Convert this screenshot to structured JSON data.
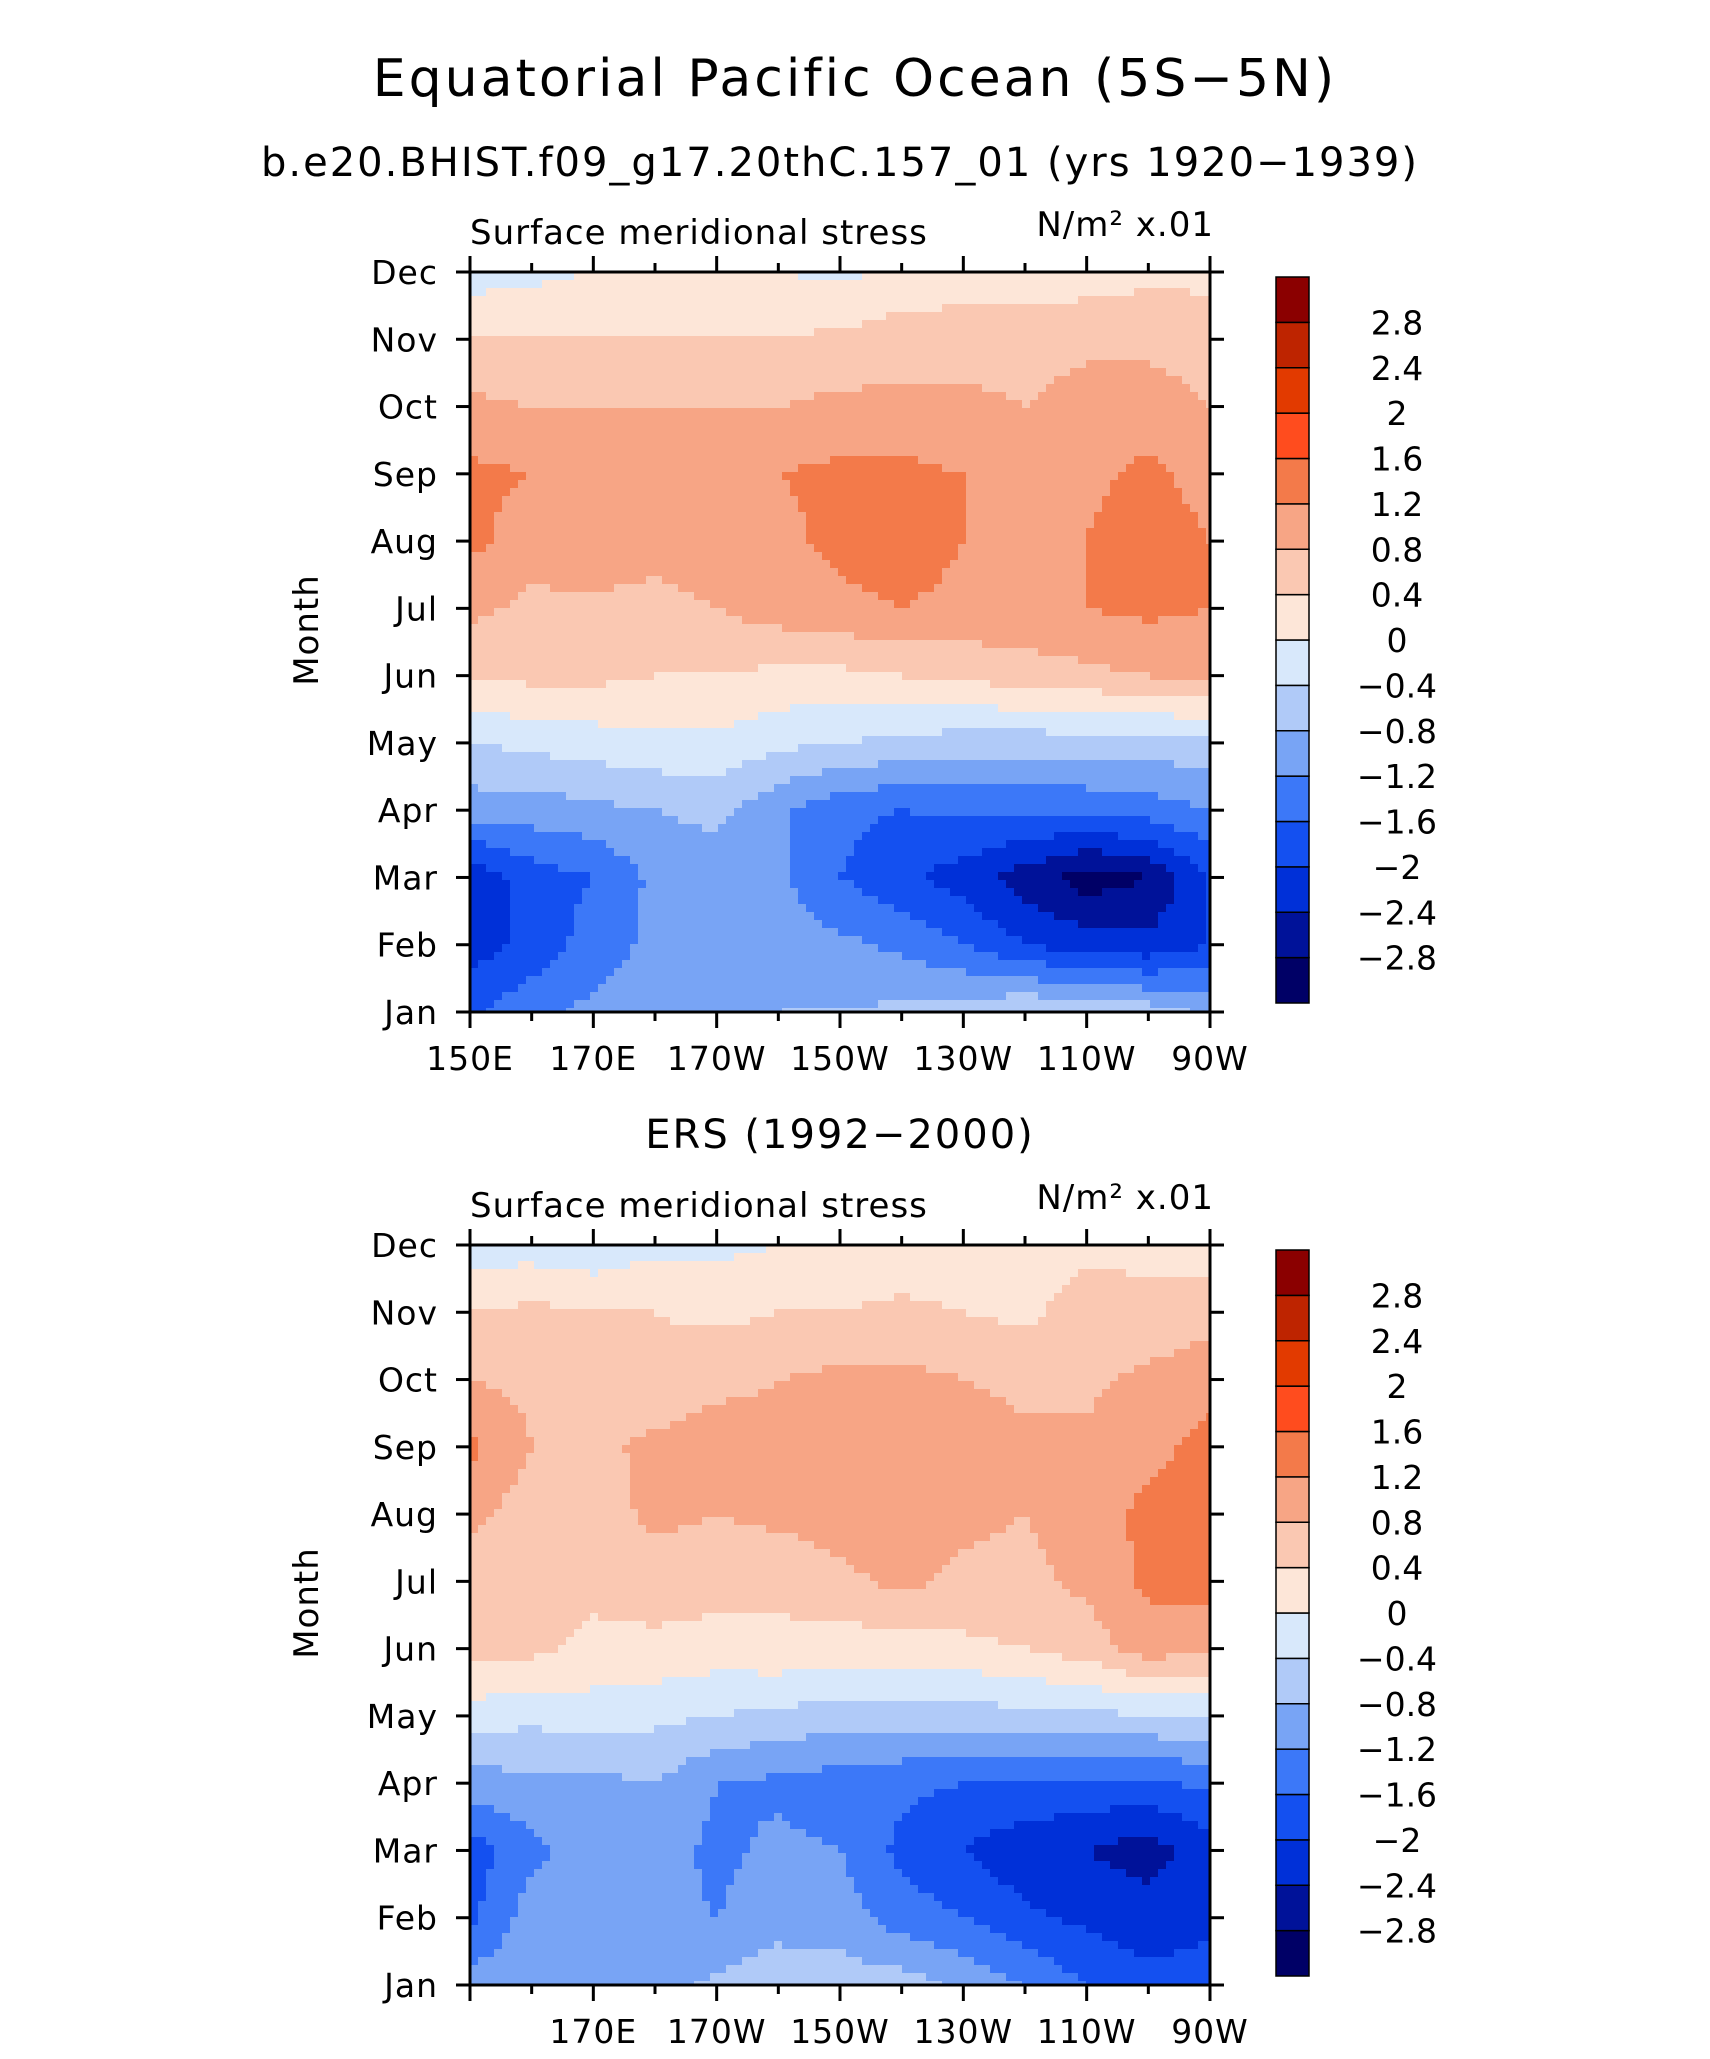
{
  "figure": {
    "title": "Equatorial Pacific Ocean (5S−5N)",
    "subtitle": "b.e20.BHIST.f09_g17.20thC.157_01 (yrs 1920−1939)"
  },
  "chart_data": [
    {
      "type": "contour",
      "panel_title": "",
      "variable_label": "Surface meridional stress",
      "units_label": "N/m² x.01",
      "ylabel": "Month",
      "y_ticks": [
        "Jan",
        "Feb",
        "Mar",
        "Apr",
        "May",
        "Jun",
        "Jul",
        "Aug",
        "Sep",
        "Oct",
        "Nov",
        "Dec"
      ],
      "x_ticks": [
        "150E",
        "170E",
        "170W",
        "150W",
        "130W",
        "110W",
        "90W"
      ],
      "x_range": [
        "150E",
        "90W"
      ],
      "y_range": [
        "Jan",
        "Dec"
      ],
      "x_grid": [
        150,
        160,
        170,
        180,
        190,
        200,
        210,
        220,
        230,
        240,
        250,
        260,
        270
      ],
      "levels": [
        -2.8,
        -2.4,
        -2.0,
        -1.6,
        -1.2,
        -0.8,
        -0.4,
        0,
        0.4,
        0.8,
        1.2,
        1.6,
        2.0,
        2.4,
        2.8
      ],
      "colors": [
        "#000066",
        "#001299",
        "#0030d8",
        "#1450f0",
        "#3c78f8",
        "#78a4f5",
        "#b0caf8",
        "#d8e8fb",
        "#fde6d8",
        "#fac8b2",
        "#f7a585",
        "#f37a4a",
        "#ff4c1e",
        "#e23a00",
        "#be2400",
        "#8b0000"
      ],
      "grid_values": [
        [
          -1.7,
          -1.3,
          -1.1,
          -1.0,
          -0.9,
          -0.8,
          -0.8,
          -0.7,
          -0.6,
          -0.4,
          -0.5,
          -0.6,
          -0.9
        ],
        [
          -2.2,
          -1.9,
          -1.4,
          -1.1,
          -1.0,
          -1.0,
          -1.1,
          -1.3,
          -1.6,
          -2.0,
          -2.2,
          -2.3,
          -2.0
        ],
        [
          -2.3,
          -1.8,
          -1.6,
          -1.1,
          -1.0,
          -1.1,
          -1.6,
          -1.9,
          -2.2,
          -2.6,
          -3.0,
          -2.8,
          -2.0
        ],
        [
          -1.0,
          -1.0,
          -0.9,
          -0.8,
          -0.7,
          -1.1,
          -1.5,
          -1.6,
          -1.5,
          -1.5,
          -1.5,
          -1.4,
          -1.2
        ],
        [
          -0.4,
          -0.3,
          -0.2,
          -0.1,
          -0.1,
          -0.3,
          -0.4,
          -0.5,
          -0.6,
          -0.6,
          -0.6,
          -0.6,
          -0.5
        ],
        [
          0.5,
          0.5,
          0.5,
          0.4,
          0.4,
          0.3,
          0.3,
          0.4,
          0.5,
          0.6,
          0.7,
          0.8,
          0.9
        ],
        [
          0.9,
          0.7,
          0.7,
          0.7,
          0.8,
          1.0,
          1.1,
          1.2,
          1.1,
          1.1,
          1.2,
          1.3,
          1.2
        ],
        [
          1.3,
          1.0,
          1.1,
          0.9,
          1.0,
          1.1,
          1.3,
          1.4,
          1.2,
          1.1,
          1.2,
          1.5,
          1.2
        ],
        [
          1.3,
          1.2,
          1.1,
          1.1,
          1.1,
          1.2,
          1.3,
          1.3,
          1.2,
          1.1,
          1.1,
          1.3,
          1.0
        ],
        [
          0.9,
          0.8,
          0.8,
          0.8,
          0.8,
          0.8,
          0.9,
          0.9,
          0.9,
          0.8,
          1.0,
          1.0,
          0.8
        ],
        [
          0.4,
          0.4,
          0.4,
          0.4,
          0.4,
          0.4,
          0.5,
          0.6,
          0.6,
          0.6,
          0.7,
          0.7,
          0.6
        ],
        [
          -0.2,
          -0.1,
          0.0,
          0.1,
          0.0,
          0.0,
          -0.1,
          0.1,
          0.2,
          0.2,
          0.2,
          0.3,
          0.3
        ]
      ]
    },
    {
      "type": "contour",
      "panel_title": "ERS (1992−2000)",
      "variable_label": "Surface meridional stress",
      "units_label": "N/m² x.01",
      "ylabel": "Month",
      "y_ticks": [
        "Jan",
        "Feb",
        "Mar",
        "Apr",
        "May",
        "Jun",
        "Jul",
        "Aug",
        "Sep",
        "Oct",
        "Nov",
        "Dec"
      ],
      "x_ticks": [
        "170E",
        "170W",
        "150W",
        "130W",
        "110W",
        "90W"
      ],
      "x_range": [
        "150E",
        "90W"
      ],
      "y_range": [
        "Jan",
        "Dec"
      ],
      "x_grid": [
        150,
        160,
        170,
        180,
        190,
        200,
        210,
        220,
        230,
        240,
        250,
        260,
        270
      ],
      "levels": [
        -2.8,
        -2.4,
        -2.0,
        -1.6,
        -1.2,
        -0.8,
        -0.4,
        0,
        0.4,
        0.8,
        1.2,
        1.6,
        2.0,
        2.4,
        2.8
      ],
      "colors": [
        "#000066",
        "#001299",
        "#0030d8",
        "#1450f0",
        "#3c78f8",
        "#78a4f5",
        "#b0caf8",
        "#d8e8fb",
        "#fde6d8",
        "#fac8b2",
        "#f7a585",
        "#f37a4a",
        "#ff4c1e",
        "#e23a00",
        "#be2400",
        "#8b0000"
      ],
      "grid_values": [
        [
          -1.0,
          -0.9,
          -0.8,
          -1.0,
          -0.7,
          -0.5,
          -0.6,
          -0.6,
          -0.9,
          -1.2,
          -1.6,
          -1.9,
          -1.8
        ],
        [
          -1.7,
          -1.0,
          -0.8,
          -1.1,
          -1.2,
          -1.0,
          -1.0,
          -1.4,
          -1.6,
          -1.9,
          -2.1,
          -2.2,
          -2.1
        ],
        [
          -1.8,
          -1.3,
          -1.0,
          -1.0,
          -1.3,
          -1.1,
          -1.2,
          -1.7,
          -2.0,
          -2.3,
          -2.4,
          -2.6,
          -2.2
        ],
        [
          -1.0,
          -0.9,
          -0.9,
          -0.8,
          -1.2,
          -1.3,
          -1.4,
          -1.5,
          -1.6,
          -1.6,
          -1.7,
          -1.7,
          -1.5
        ],
        [
          -0.2,
          -0.3,
          -0.2,
          -0.3,
          -0.4,
          -0.5,
          -0.6,
          -0.6,
          -0.6,
          -0.5,
          -0.5,
          -0.4,
          -0.4
        ],
        [
          0.6,
          0.5,
          0.3,
          0.3,
          0.2,
          0.3,
          0.2,
          0.2,
          0.3,
          0.4,
          0.6,
          1.0,
          0.9
        ],
        [
          0.6,
          0.7,
          0.5,
          0.6,
          0.6,
          0.5,
          0.7,
          0.9,
          0.7,
          0.7,
          0.9,
          1.3,
          1.4
        ],
        [
          0.9,
          0.6,
          0.6,
          0.9,
          0.8,
          0.9,
          1.0,
          1.0,
          0.9,
          0.8,
          1.0,
          1.3,
          1.4
        ],
        [
          1.3,
          0.8,
          0.7,
          0.9,
          1.0,
          0.9,
          1.0,
          1.1,
          1.0,
          0.9,
          0.9,
          1.1,
          1.3
        ],
        [
          0.8,
          0.7,
          0.6,
          0.5,
          0.7,
          0.8,
          0.9,
          0.9,
          0.8,
          0.7,
          0.7,
          0.9,
          1.1
        ],
        [
          0.4,
          0.5,
          0.4,
          0.4,
          0.3,
          0.4,
          0.4,
          0.5,
          0.4,
          0.3,
          0.6,
          0.5,
          0.6
        ],
        [
          -0.2,
          -0.2,
          -0.3,
          -0.1,
          -0.1,
          0.0,
          0.1,
          0.1,
          0.1,
          0.2,
          0.3,
          0.3,
          0.2
        ]
      ]
    }
  ]
}
